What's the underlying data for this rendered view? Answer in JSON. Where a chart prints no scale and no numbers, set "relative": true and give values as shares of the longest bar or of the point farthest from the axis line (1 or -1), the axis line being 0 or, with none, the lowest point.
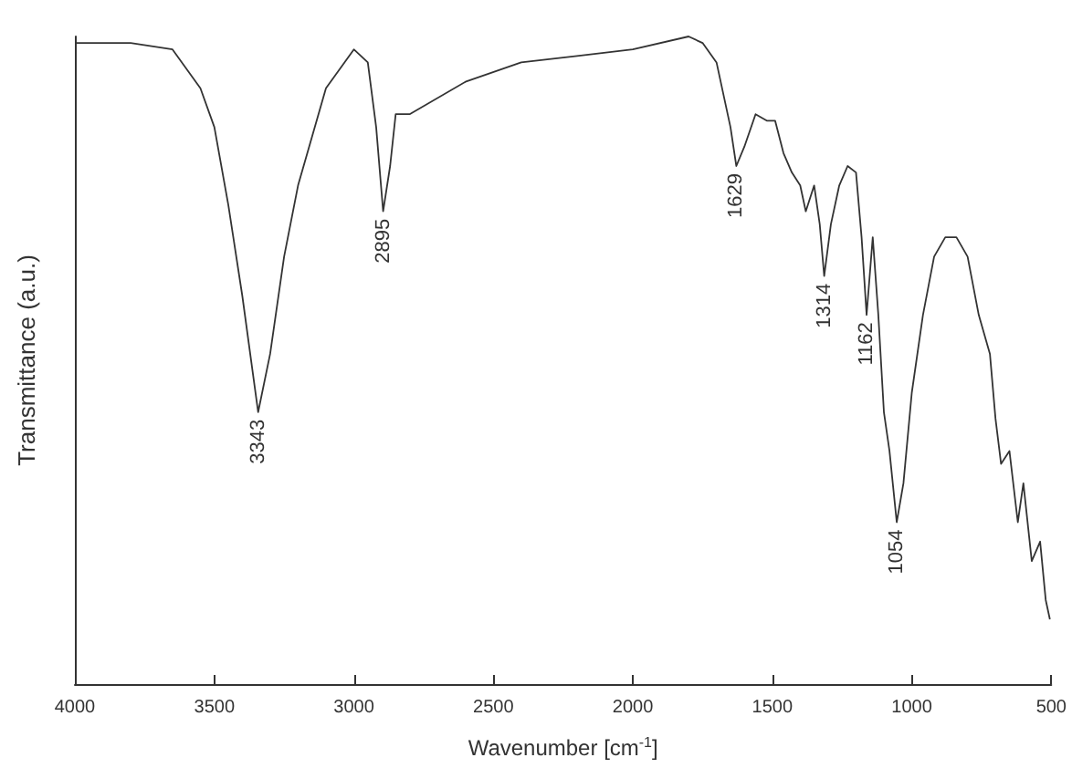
{
  "chart_data": {
    "type": "line",
    "relative": true,
    "xlabel": "Wavenumber [cm$^{-1}$]",
    "ylabel": "Transmittance (a.u.)",
    "xlim": [
      4000,
      500
    ],
    "xticks": [
      4000,
      3500,
      3000,
      2500,
      2000,
      1500,
      1000,
      500
    ],
    "marker": "none",
    "line_style": "solid",
    "series": [
      {
        "color": "#333333",
        "x": [
          4000,
          3800,
          3650,
          3550,
          3500,
          3450,
          3400,
          3343,
          3300,
          3250,
          3200,
          3100,
          3000,
          2950,
          2920,
          2895,
          2870,
          2850,
          2800,
          2600,
          2400,
          2200,
          2000,
          1800,
          1750,
          1700,
          1650,
          1629,
          1600,
          1560,
          1520,
          1490,
          1460,
          1430,
          1400,
          1380,
          1350,
          1330,
          1314,
          1290,
          1260,
          1230,
          1200,
          1180,
          1162,
          1140,
          1120,
          1100,
          1080,
          1054,
          1030,
          1000,
          960,
          920,
          880,
          840,
          800,
          760,
          720,
          700,
          680,
          650,
          620,
          600,
          570,
          540,
          520,
          505
        ],
        "values": [
          0.99,
          0.99,
          0.98,
          0.92,
          0.86,
          0.74,
          0.6,
          0.42,
          0.51,
          0.66,
          0.77,
          0.92,
          0.98,
          0.96,
          0.86,
          0.73,
          0.8,
          0.88,
          0.88,
          0.93,
          0.96,
          0.97,
          0.98,
          1.0,
          0.99,
          0.96,
          0.86,
          0.8,
          0.83,
          0.88,
          0.87,
          0.87,
          0.82,
          0.79,
          0.77,
          0.73,
          0.77,
          0.71,
          0.63,
          0.71,
          0.77,
          0.8,
          0.79,
          0.69,
          0.57,
          0.69,
          0.57,
          0.42,
          0.36,
          0.25,
          0.31,
          0.45,
          0.57,
          0.66,
          0.69,
          0.69,
          0.66,
          0.57,
          0.51,
          0.41,
          0.34,
          0.36,
          0.25,
          0.31,
          0.19,
          0.22,
          0.13,
          0.1
        ]
      }
    ],
    "annotations": [
      {
        "text": "3343",
        "x": 3343,
        "y": 0.42
      },
      {
        "text": "2895",
        "x": 2895,
        "y": 0.73
      },
      {
        "text": "1629",
        "x": 1629,
        "y": 0.8
      },
      {
        "text": "1314",
        "x": 1314,
        "y": 0.63
      },
      {
        "text": "1162",
        "x": 1162,
        "y": 0.57
      },
      {
        "text": "1054",
        "x": 1054,
        "y": 0.25
      }
    ]
  }
}
